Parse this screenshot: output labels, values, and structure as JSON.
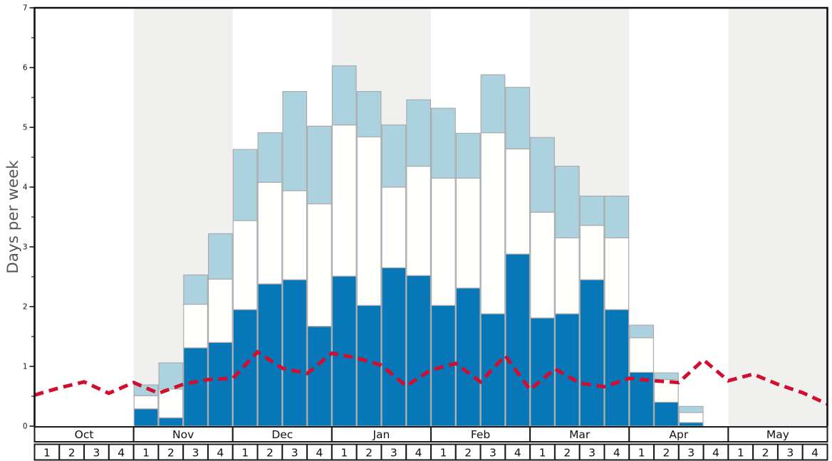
{
  "y_axis": {
    "label": "Days per week",
    "min": 0,
    "max": 7,
    "major_ticks": [
      0,
      1,
      2,
      3,
      4,
      5,
      6,
      7
    ],
    "minor_tick_step": 0.5
  },
  "x_axis": {
    "months": [
      "Oct",
      "Nov",
      "Dec",
      "Jan",
      "Feb",
      "Mar",
      "Apr",
      "May"
    ],
    "week_labels": [
      "1",
      "2",
      "3",
      "4"
    ],
    "shaded_months": [
      "Nov",
      "Jan",
      "Mar",
      "May"
    ]
  },
  "chart_data": {
    "type": "bar",
    "subtype": "stacked-bars-with-dashed-line",
    "title": "",
    "xlabel": "",
    "ylabel": "Days per week",
    "ylim": [
      0,
      7
    ],
    "months": [
      "Oct",
      "Nov",
      "Dec",
      "Jan",
      "Feb",
      "Mar",
      "Apr",
      "May"
    ],
    "weeks_per_month": 4,
    "categories": [
      "Oct-1",
      "Oct-2",
      "Oct-3",
      "Oct-4",
      "Nov-1",
      "Nov-2",
      "Nov-3",
      "Nov-4",
      "Dec-1",
      "Dec-2",
      "Dec-3",
      "Dec-4",
      "Jan-1",
      "Jan-2",
      "Jan-3",
      "Jan-4",
      "Feb-1",
      "Feb-2",
      "Feb-3",
      "Feb-4",
      "Mar-1",
      "Mar-2",
      "Mar-3",
      "Mar-4",
      "Apr-1",
      "Apr-2",
      "Apr-3",
      "Apr-4",
      "May-1",
      "May-2",
      "May-3",
      "May-4"
    ],
    "series": [
      {
        "name": "dark-blue-segment",
        "color": "#0877b8",
        "cumulative_tops": [
          0,
          0,
          0,
          0,
          0.29,
          0.14,
          1.31,
          1.4,
          1.95,
          2.38,
          2.45,
          1.67,
          2.51,
          2.02,
          2.65,
          2.52,
          2.02,
          2.31,
          1.88,
          2.88,
          1.81,
          1.88,
          2.45,
          1.95,
          0.9,
          0.4,
          0.06,
          0,
          0,
          0,
          0,
          0
        ]
      },
      {
        "name": "white-segment",
        "color": "#fffffd",
        "cumulative_tops": [
          0,
          0,
          0,
          0,
          0.51,
          0.62,
          2.04,
          2.46,
          3.44,
          4.08,
          3.94,
          3.72,
          5.04,
          4.84,
          4.0,
          4.35,
          4.15,
          4.15,
          4.91,
          4.64,
          3.58,
          3.15,
          3.36,
          3.15,
          1.48,
          0.78,
          0.23,
          0,
          0,
          0,
          0,
          0
        ]
      },
      {
        "name": "light-blue-segment",
        "color": "#acd2df",
        "cumulative_tops": [
          0,
          0,
          0,
          0,
          0.69,
          1.06,
          2.53,
          3.22,
          4.63,
          4.91,
          5.6,
          5.02,
          6.03,
          5.6,
          5.04,
          5.46,
          5.32,
          4.9,
          5.88,
          5.67,
          4.83,
          4.35,
          3.85,
          3.85,
          1.69,
          0.89,
          0.33,
          0,
          0,
          0,
          0,
          0
        ]
      }
    ],
    "line": {
      "name": "red-dashed-trend-line",
      "color": "#d10e30",
      "style": "dashed",
      "points_at": "week-boundaries",
      "values": [
        0.52,
        0.64,
        0.74,
        0.55,
        0.73,
        0.55,
        0.7,
        0.78,
        0.8,
        1.24,
        0.97,
        0.88,
        1.22,
        1.14,
        1.02,
        0.67,
        0.94,
        1.05,
        0.74,
        1.18,
        0.61,
        0.96,
        0.72,
        0.66,
        0.8,
        0.76,
        0.73,
        1.11,
        0.76,
        0.87,
        0.7,
        0.56,
        0.37
      ]
    },
    "colors": {
      "month_shading_band": "#f0f0ef",
      "bar_border": "#ababab",
      "plot_border": "#111111",
      "axis_table_border": "#1a1a1a",
      "tick_label": "#111111",
      "axis_title": "#555555"
    },
    "legend": "none",
    "grid": "off"
  }
}
